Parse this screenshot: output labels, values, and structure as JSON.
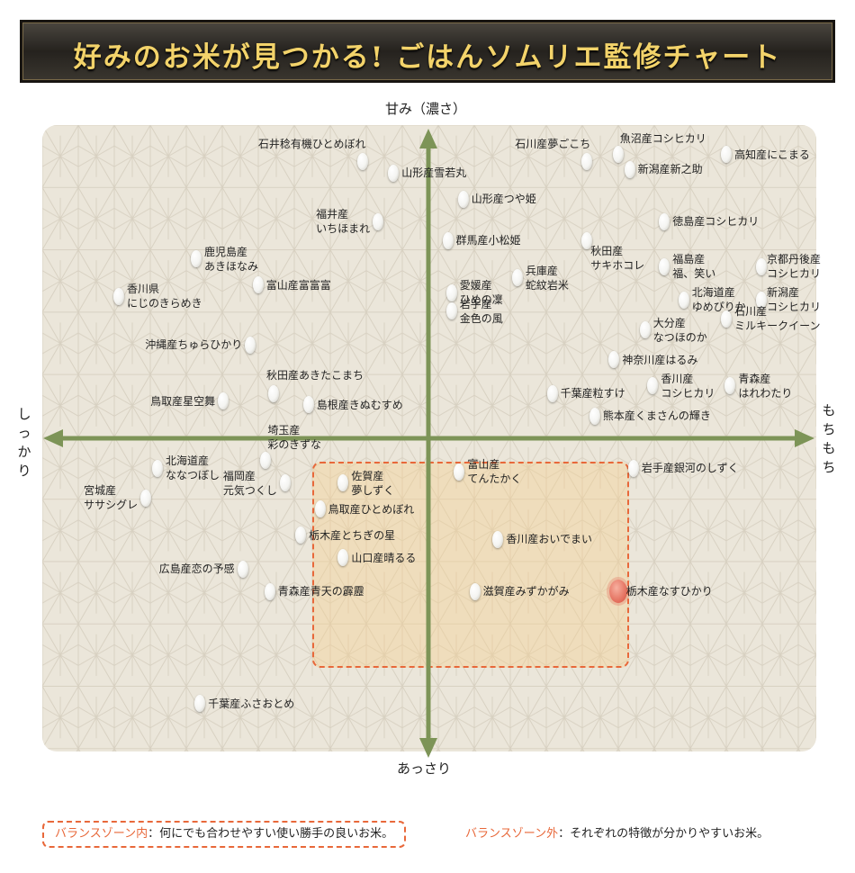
{
  "header": {
    "title": "好みのお米が見つかる! ごはんソムリエ監修チャート"
  },
  "axes_labels": {
    "top": "甘み（濃さ）",
    "bottom": "あっさり",
    "left": "しっかり",
    "right": "もちもち"
  },
  "legend": {
    "inside_key": "バランスゾーン内",
    "inside_text": "：何にでも合わせやすい使い勝手の良いお米。",
    "outside_key": "バランスゾーン外",
    "outside_text": "：それぞれの特徴が分かりやすいお米。"
  },
  "colors": {
    "axis": "#7d9457",
    "zone_border": "#e8683a",
    "zone_fill": "#f8d08c",
    "highlight": "#e26a58",
    "banner_text": "#f3d36a"
  },
  "chart_data": {
    "type": "scatter",
    "x_axis": {
      "negative": "しっかり",
      "positive": "もちもち",
      "range": [
        -100,
        100
      ]
    },
    "y_axis": {
      "negative": "あっさり",
      "positive": "甘み（濃さ）",
      "range": [
        -100,
        100
      ]
    },
    "balance_zone": {
      "x": [
        -41,
        41
      ],
      "y": [
        -27,
        27
      ]
    },
    "points": [
      {
        "label": "石井稔有機ひとめぼれ",
        "x": -17,
        "y": 74,
        "label_side": "above-left"
      },
      {
        "label": "山形産雪若丸",
        "x": -9,
        "y": 71,
        "label_side": "right"
      },
      {
        "label": "山形産つや姫",
        "x": 9,
        "y": 64,
        "label_side": "right"
      },
      {
        "label": "石川産夢ごこち",
        "x": 41,
        "y": 74,
        "label_side": "above-left"
      },
      {
        "label": "魚沼産コシヒカリ",
        "x": 49,
        "y": 76,
        "label_side": "above-right"
      },
      {
        "label": "新潟産新之助",
        "x": 52,
        "y": 72,
        "label_side": "right"
      },
      {
        "label": "高知産にこまる",
        "x": 77,
        "y": 76,
        "label_side": "right"
      },
      {
        "label": "福井産\nいちほまれ",
        "x": -13,
        "y": 58,
        "label_side": "left"
      },
      {
        "label": "群馬産小松姫",
        "x": 5,
        "y": 53,
        "label_side": "right"
      },
      {
        "label": "徳島産コシヒカリ",
        "x": 61,
        "y": 58,
        "label_side": "right"
      },
      {
        "label": "秋田産\nサキホコレ",
        "x": 41,
        "y": 53,
        "label_side": "below-right"
      },
      {
        "label": "鹿児島産\nあきほなみ",
        "x": -60,
        "y": 48,
        "label_side": "right"
      },
      {
        "label": "富山産富富富",
        "x": -44,
        "y": 41,
        "label_side": "right"
      },
      {
        "label": "愛媛産\nひめの凜",
        "x": 6,
        "y": 39,
        "label_side": "right"
      },
      {
        "label": "兵庫産\n蛇紋岩米",
        "x": 23,
        "y": 43,
        "label_side": "right"
      },
      {
        "label": "福島産\n福、笑い",
        "x": 61,
        "y": 46,
        "label_side": "right"
      },
      {
        "label": "京都丹後産\nコシヒカリ",
        "x": 86,
        "y": 46,
        "label_side": "right"
      },
      {
        "label": "香川県\nにじのきらめき",
        "x": -80,
        "y": 38,
        "label_side": "right"
      },
      {
        "label": "北海道産\nゆめぴりか",
        "x": 66,
        "y": 37,
        "label_side": "right"
      },
      {
        "label": "新潟産\nコシヒカリ",
        "x": 86,
        "y": 37,
        "label_side": "right"
      },
      {
        "label": "岩手産\n金色の風",
        "x": 6,
        "y": 34,
        "label_side": "right"
      },
      {
        "label": "大分産\nなつほのか",
        "x": 56,
        "y": 29,
        "label_side": "right"
      },
      {
        "label": "石川産\nミルキークイーン",
        "x": 77,
        "y": 32,
        "label_side": "right"
      },
      {
        "label": "沖縄産ちゅらひかり",
        "x": -46,
        "y": 25,
        "label_side": "left"
      },
      {
        "label": "神奈川産はるみ",
        "x": 48,
        "y": 21,
        "label_side": "right"
      },
      {
        "label": "秋田産あきたこまち",
        "x": -40,
        "y": 12,
        "label_side": "above"
      },
      {
        "label": "千葉産粒すけ",
        "x": 32,
        "y": 12,
        "label_side": "right"
      },
      {
        "label": "香川産\nコシヒカリ",
        "x": 58,
        "y": 14,
        "label_side": "right"
      },
      {
        "label": "青森産\nはれわたり",
        "x": 78,
        "y": 14,
        "label_side": "right"
      },
      {
        "label": "鳥取産星空舞",
        "x": -53,
        "y": 10,
        "label_side": "left"
      },
      {
        "label": "島根産きぬむすめ",
        "x": -31,
        "y": 9,
        "label_side": "right"
      },
      {
        "label": "熊本産くまさんの輝き",
        "x": 43,
        "y": 6,
        "label_side": "right"
      },
      {
        "label": "埼玉産\n彩のきずな",
        "x": -42,
        "y": -6,
        "label_side": "above-right"
      },
      {
        "label": "北海道産\nななつぼし",
        "x": -70,
        "y": -8,
        "label_side": "right"
      },
      {
        "label": "佐賀産\n夢しずく",
        "x": -22,
        "y": -12,
        "label_side": "right"
      },
      {
        "label": "富山産\nてんたかく",
        "x": 8,
        "y": -9,
        "label_side": "right"
      },
      {
        "label": "岩手産銀河のしずく",
        "x": 53,
        "y": -8,
        "label_side": "right"
      },
      {
        "label": "福岡産\n元気つくし",
        "x": -37,
        "y": -12,
        "label_side": "left"
      },
      {
        "label": "宮城産\nササシグレ",
        "x": -73,
        "y": -16,
        "label_side": "left"
      },
      {
        "label": "鳥取産ひとめぼれ",
        "x": -28,
        "y": -19,
        "label_side": "right"
      },
      {
        "label": "栃木産とちぎの星",
        "x": -33,
        "y": -26,
        "label_side": "right"
      },
      {
        "label": "香川産おいでまい",
        "x": 18,
        "y": -27,
        "label_side": "right"
      },
      {
        "label": "山口産晴るる",
        "x": -22,
        "y": -32,
        "label_side": "right"
      },
      {
        "label": "広島産恋の予感",
        "x": -48,
        "y": -35,
        "label_side": "left"
      },
      {
        "label": "青森産青天の霹靂",
        "x": -41,
        "y": -41,
        "label_side": "right"
      },
      {
        "label": "滋賀産みずかがみ",
        "x": 12,
        "y": -41,
        "label_side": "right"
      },
      {
        "label": "栃木産なすひかり",
        "x": 49,
        "y": -41,
        "label_side": "right",
        "highlight": true
      },
      {
        "label": "千葉産ふさおとめ",
        "x": -59,
        "y": -71,
        "label_side": "right"
      }
    ]
  }
}
